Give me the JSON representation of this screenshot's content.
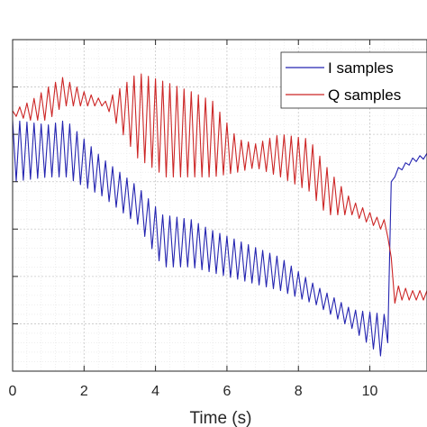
{
  "chart_data": {
    "type": "line",
    "title": "",
    "xlabel": "Time (s)",
    "ylabel": "",
    "xlim": [
      0,
      11.6
    ],
    "ylim": [
      0,
      7
    ],
    "x_ticks": [
      0,
      2,
      4,
      6,
      8,
      10
    ],
    "y_ticks": [
      0,
      1,
      2,
      3,
      4,
      5,
      6,
      7
    ],
    "x_tick_labels": [
      "0",
      "2",
      "4",
      "6",
      "8",
      "10"
    ],
    "grid": true,
    "minor_grid": true,
    "legend_position": "top-right",
    "series": [
      {
        "name": "I samples",
        "color": "#2424b0",
        "envelope_x": [
          0,
          1,
          1.5,
          2.5,
          3.5,
          4.2,
          5.0,
          5.5,
          6.5,
          7.5,
          8.5,
          9.5,
          10.4,
          10.5,
          10.6,
          10.8,
          11.2,
          11.6
        ],
        "upper": [
          5.3,
          5.2,
          5.3,
          4.5,
          3.9,
          3.3,
          3.2,
          3.0,
          2.7,
          2.4,
          1.8,
          1.3,
          1.2,
          1.2,
          4.0,
          4.3,
          4.5,
          4.6
        ],
        "lower": [
          4.0,
          4.1,
          4.1,
          3.7,
          3.1,
          2.2,
          2.2,
          2.1,
          1.9,
          1.7,
          1.4,
          0.9,
          0.25,
          0.6,
          4.0,
          4.2,
          4.4,
          4.5
        ],
        "period": 0.2
      },
      {
        "name": "Q samples",
        "color": "#cc2525",
        "envelope_x": [
          0,
          0.5,
          1.0,
          1.4,
          2.0,
          2.6,
          3.5,
          4.3,
          5.0,
          5.6,
          6.3,
          6.8,
          7.5,
          8.3,
          8.8,
          9.5,
          10.3,
          10.55,
          10.65,
          10.8,
          11.2,
          11.6
        ],
        "upper": [
          5.5,
          5.7,
          6.0,
          6.2,
          5.9,
          5.7,
          6.3,
          6.1,
          5.9,
          5.7,
          4.9,
          4.8,
          5.0,
          4.9,
          4.3,
          3.6,
          3.2,
          3.2,
          1.6,
          1.8,
          1.7,
          1.7
        ],
        "lower": [
          5.4,
          5.3,
          5.3,
          5.6,
          5.6,
          5.6,
          4.5,
          4.1,
          4.1,
          4.1,
          4.2,
          4.3,
          4.1,
          3.8,
          3.3,
          3.3,
          3.0,
          2.8,
          1.4,
          1.5,
          1.5,
          1.5
        ],
        "period": 0.2
      }
    ]
  }
}
